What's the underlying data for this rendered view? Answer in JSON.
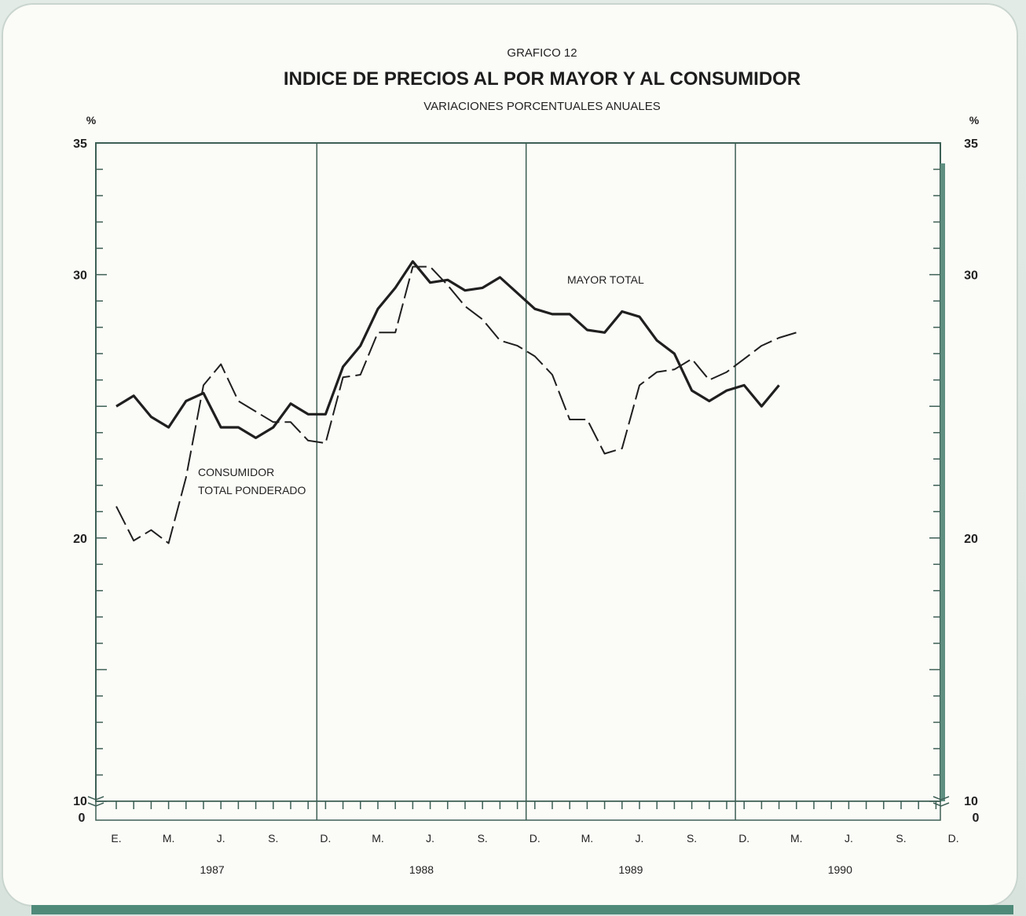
{
  "header": {
    "figure_number": "GRAFICO 12",
    "title": "INDICE DE PRECIOS AL POR MAYOR Y AL CONSUMIDOR",
    "subtitle": "VARIACIONES PORCENTUALES ANUALES"
  },
  "axes": {
    "unit_left": "%",
    "unit_right": "%",
    "y_break_labels": [
      "10",
      "0"
    ]
  },
  "chart_data": {
    "type": "line",
    "title": "INDICE DE PRECIOS AL POR MAYOR Y AL CONSUMIDOR",
    "subtitle": "VARIACIONES PORCENTUALES ANUALES",
    "xlabel": "",
    "ylabel": "%",
    "ylim": [
      10,
      35
    ],
    "y_axis_break": true,
    "y_ticks": [
      10,
      20,
      30,
      35
    ],
    "x_month_labels": [
      "E.",
      "M.",
      "J.",
      "S.",
      "D.",
      "M.",
      "J.",
      "S.",
      "D.",
      "M.",
      "J.",
      "S.",
      "D.",
      "M.",
      "J.",
      "S.",
      "D."
    ],
    "x_year_labels": [
      "1987",
      "1988",
      "1989",
      "1990"
    ],
    "x_range_months": [
      "1987-01",
      "1990-12"
    ],
    "grid": false,
    "year_dividers": true,
    "series": [
      {
        "name": "MAYOR TOTAL",
        "style": "solid",
        "start": "1987-01",
        "values": [
          25.0,
          25.4,
          24.6,
          24.2,
          25.2,
          25.5,
          24.2,
          24.2,
          23.8,
          24.2,
          25.1,
          24.7,
          24.7,
          26.5,
          27.3,
          28.7,
          29.5,
          30.5,
          29.7,
          29.8,
          29.4,
          29.5,
          29.9,
          29.3,
          28.7,
          28.5,
          28.5,
          27.9,
          27.8,
          28.6,
          28.4,
          27.5,
          27.0,
          25.6,
          25.2,
          25.6,
          25.8,
          25.0,
          25.8
        ]
      },
      {
        "name": "CONSUMIDOR TOTAL PONDERADO",
        "style": "dashed",
        "start": "1987-01",
        "values": [
          21.2,
          19.9,
          20.3,
          19.8,
          22.3,
          25.8,
          26.6,
          25.2,
          24.8,
          24.4,
          24.4,
          23.7,
          23.6,
          26.1,
          26.2,
          27.8,
          27.8,
          30.3,
          30.3,
          29.6,
          28.8,
          28.3,
          27.5,
          27.3,
          26.9,
          26.2,
          24.5,
          24.5,
          23.2,
          23.4,
          25.8,
          26.3,
          26.4,
          26.8,
          26.0,
          26.3,
          26.8,
          27.3,
          27.6,
          27.8
        ]
      }
    ],
    "annotations": [
      "MAYOR TOTAL",
      "CONSUMIDOR TOTAL PONDERADO"
    ],
    "colors": {
      "line": "#1f1f1f",
      "frame": "#3d5f55",
      "accent_bar": "#4f8a79"
    }
  }
}
